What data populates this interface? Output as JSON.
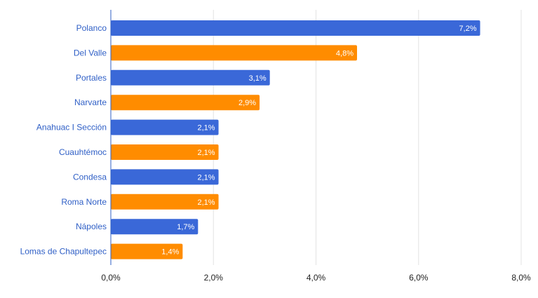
{
  "chart_data": {
    "type": "bar",
    "orientation": "horizontal",
    "categories": [
      "Polanco",
      "Del Valle",
      "Portales",
      "Narvarte",
      "Anahuac I Sección",
      "Cuauhtémoc",
      "Condesa",
      "Roma Norte",
      "Nápoles",
      "Lomas de Chapultepec"
    ],
    "values": [
      7.2,
      4.8,
      3.1,
      2.9,
      2.1,
      2.1,
      2.1,
      2.1,
      1.7,
      1.4
    ],
    "data_labels": [
      "7,2%",
      "4,8%",
      "3,1%",
      "2,9%",
      "2,1%",
      "2,1%",
      "2,1%",
      "2,1%",
      "1,7%",
      "1,4%"
    ],
    "xlim": [
      0,
      8
    ],
    "xticks": [
      0,
      2,
      4,
      6,
      8
    ],
    "xtick_labels": [
      "0,0%",
      "2,0%",
      "4,0%",
      "6,0%",
      "8,0%"
    ],
    "bar_colors": [
      "#3a68d8",
      "#ff8c00"
    ],
    "vertical_gridlines": true,
    "title": "",
    "xlabel": "",
    "ylabel": ""
  }
}
